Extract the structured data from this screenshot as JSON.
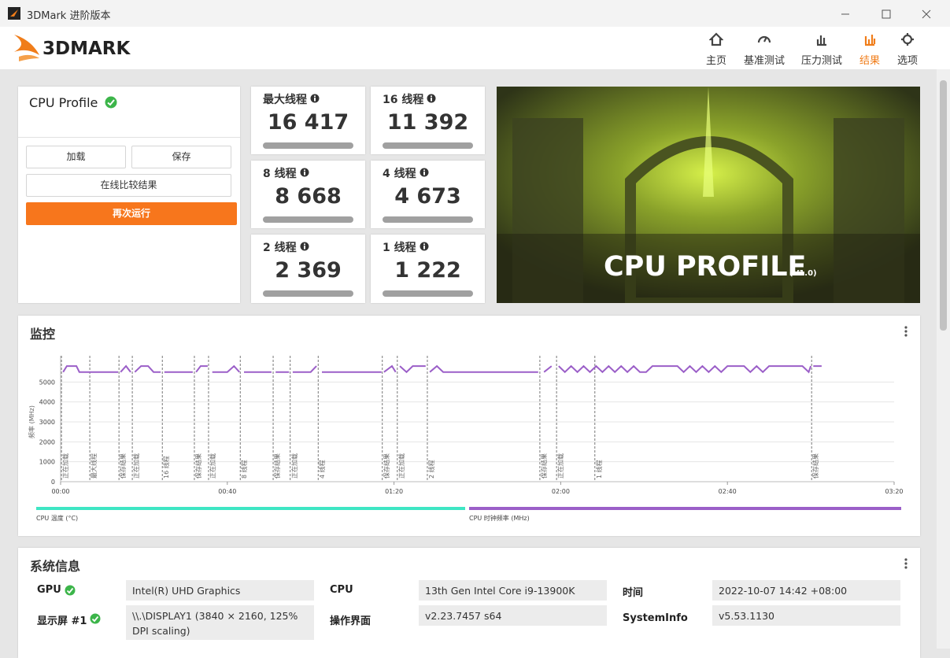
{
  "window": {
    "title": "3DMark 进阶版本"
  },
  "header": {
    "logo": "3DMARK",
    "nav": [
      "主页",
      "基准测试",
      "压力测试",
      "结果",
      "选项"
    ],
    "active": 3
  },
  "profile": {
    "title": "CPU Profile",
    "buttons": [
      "加载",
      "保存",
      "在线比较结果",
      "再次运行"
    ]
  },
  "scores": [
    {
      "label": "最大线程",
      "value": "16 417"
    },
    {
      "label": "16 线程",
      "value": "11 392"
    },
    {
      "label": "8 线程",
      "value": "8 668"
    },
    {
      "label": "4 线程",
      "value": "4 673"
    },
    {
      "label": "2 线程",
      "value": "2 369"
    },
    {
      "label": "1 线程",
      "value": "1 222"
    }
  ],
  "banner": {
    "title": "CPU PROFILE",
    "version": "(V1.0)"
  },
  "monitor": {
    "title": "监控",
    "chart_data": {
      "type": "line",
      "ylabel": "频率 (MHz)",
      "x": [
        0.6,
        1.5,
        3.8,
        4.5,
        8.3,
        null,
        7.9,
        13.8,
        null,
        14.4,
        15.7,
        16.8,
        null,
        17.8,
        19.3,
        21.0,
        22.3,
        24.0,
        null,
        24.9,
        31.7,
        null,
        32.5,
        33.6,
        35.3,
        null,
        36.4,
        40.0,
        41.6,
        42.9,
        null,
        44.0,
        50.6,
        null,
        51.6,
        54.8,
        null,
        55.7,
        60.0,
        61.4,
        null,
        62.7,
        77.0,
        null,
        77.6,
        79.5,
        80.4,
        null,
        81.4,
        83.0,
        84.5,
        87.6,
        null,
        88.6,
        90.3,
        91.8,
        114.6,
        null,
        116.0,
        117.8,
        null,
        119.5,
        121,
        122.5,
        124,
        125.5,
        127,
        128.5,
        130,
        131.5,
        133,
        134.5,
        136,
        137.5,
        139,
        140.5,
        142,
        148,
        149.5,
        151,
        152.5,
        154,
        155.5,
        157,
        158.5,
        160,
        164,
        165.5,
        167,
        168.5,
        170,
        178,
        179.5,
        180,
        null,
        180.6,
        182.6
      ],
      "series": [
        {
          "name": "CPU 时钟频率 (MHz)",
          "color": "#9b5fc8",
          "values": [
            5500,
            5800,
            5800,
            5500,
            5500,
            null,
            5500,
            5500,
            null,
            5500,
            5800,
            5500,
            null,
            5500,
            5800,
            5800,
            5500,
            5500,
            null,
            5500,
            5500,
            null,
            5500,
            5800,
            5800,
            null,
            5500,
            5500,
            5800,
            5500,
            null,
            5500,
            5500,
            null,
            5500,
            5500,
            null,
            5500,
            5500,
            5800,
            null,
            5500,
            5500,
            null,
            5500,
            5800,
            5500,
            null,
            5800,
            5500,
            5800,
            5800,
            null,
            5500,
            5800,
            5500,
            5500,
            null,
            5500,
            5800,
            null,
            5800,
            5500,
            5800,
            5500,
            5800,
            5500,
            5800,
            5500,
            5800,
            5500,
            5800,
            5500,
            5800,
            5500,
            5500,
            5800,
            5800,
            5500,
            5800,
            5500,
            5800,
            5500,
            5800,
            5500,
            5800,
            5800,
            5500,
            5800,
            5500,
            5800,
            5800,
            5500,
            5800,
            null,
            5800,
            5800
          ]
        }
      ],
      "extra_legend": {
        "name": "CPU 温度 (°C)",
        "color": "#3ee6c4"
      },
      "xlim": [
        0,
        200
      ],
      "xticks": [
        {
          "value": 0,
          "label": "00:00"
        },
        {
          "value": 40,
          "label": "00:40"
        },
        {
          "value": 80,
          "label": "01:20"
        },
        {
          "value": 120,
          "label": "02:00"
        },
        {
          "value": 160,
          "label": "02:40"
        },
        {
          "value": 200,
          "label": "03:20"
        }
      ],
      "ylim": [
        0,
        6000
      ],
      "yticks": [
        0,
        1000,
        2000,
        3000,
        4000,
        5000
      ],
      "grid": true,
      "markers": [
        {
          "x": 0.2,
          "label": "正在加载"
        },
        {
          "x": 7.0,
          "label": "最大线程"
        },
        {
          "x": 14.0,
          "label": "保存结果"
        },
        {
          "x": 17.2,
          "label": "正在加载"
        },
        {
          "x": 24.4,
          "label": "16 线程"
        },
        {
          "x": 32.1,
          "label": "保存结果"
        },
        {
          "x": 35.5,
          "label": "正在加载"
        },
        {
          "x": 43.1,
          "label": "8 线程"
        },
        {
          "x": 51.0,
          "label": "保存结果"
        },
        {
          "x": 55.1,
          "label": "正在加载"
        },
        {
          "x": 61.8,
          "label": "4 线程"
        },
        {
          "x": 77.2,
          "label": "保存结果"
        },
        {
          "x": 80.8,
          "label": "正在加载"
        },
        {
          "x": 88.0,
          "label": "2 线程"
        },
        {
          "x": 115.0,
          "label": "保存结果"
        },
        {
          "x": 119.0,
          "label": "正在加载"
        },
        {
          "x": 128.2,
          "label": "1 线程"
        },
        {
          "x": 180.2,
          "label": "保存结果"
        }
      ]
    }
  },
  "sysinfo": {
    "title": "系统信息",
    "rows": [
      [
        {
          "label": "GPU",
          "check": true
        },
        "Intel(R) UHD Graphics",
        {
          "label": "CPU"
        },
        "13th Gen Intel Core i9-13900K",
        {
          "label": "时间"
        },
        "2022-10-07 14:42 +08:00"
      ],
      [
        {
          "label": "显示屏 #1",
          "check": true
        },
        "\\\\.\\DISPLAY1 (3840 × 2160, 125% DPI scaling)",
        {
          "label": "操作界面"
        },
        "v2.23.7457 s64",
        {
          "label": "SystemInfo"
        },
        "v5.53.1130"
      ]
    ]
  }
}
